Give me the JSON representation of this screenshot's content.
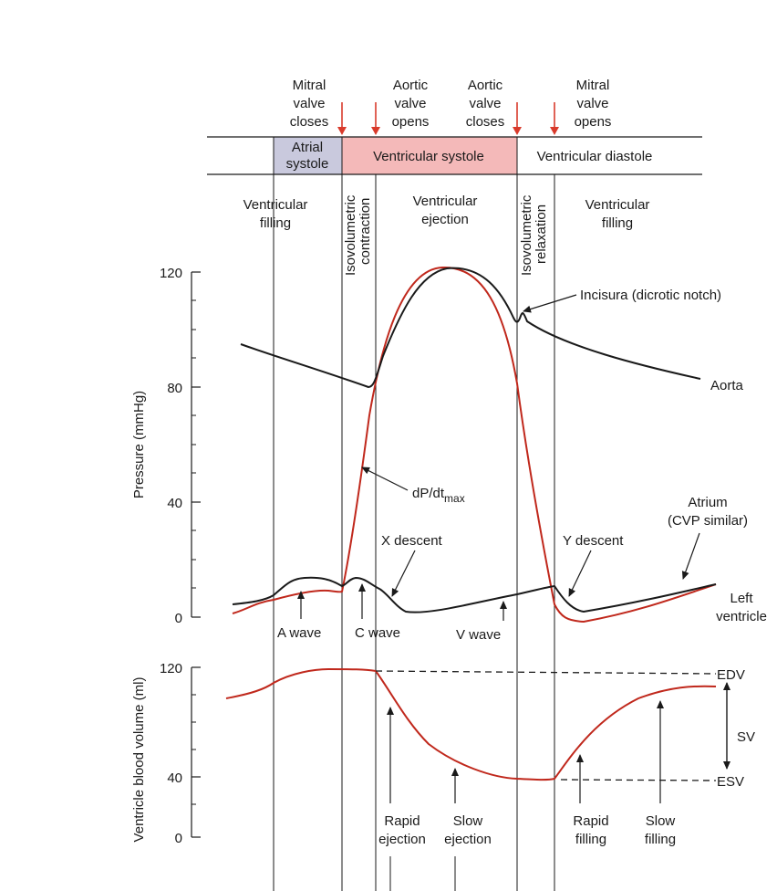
{
  "valve_events": [
    {
      "lines": [
        "Mitral",
        "valve",
        "closes"
      ]
    },
    {
      "lines": [
        "Aortic",
        "valve",
        "opens"
      ]
    },
    {
      "lines": [
        "Aortic",
        "valve",
        "closes"
      ]
    },
    {
      "lines": [
        "Mitral",
        "valve",
        "opens"
      ]
    }
  ],
  "phase_bar": {
    "atrial_systole": [
      "Atrial",
      "systole"
    ],
    "ventricular_systole": "Ventricular systole",
    "ventricular_diastole": "Ventricular diastole"
  },
  "sub_phases": {
    "filling_left": [
      "Ventricular",
      "filling"
    ],
    "isovolumetric_contraction": [
      "Isovolumetric",
      "contraction"
    ],
    "ejection": [
      "Ventricular",
      "ejection"
    ],
    "isovolumetric_relaxation": [
      "Isovolumetric",
      "relaxation"
    ],
    "filling_right": [
      "Ventricular",
      "filling"
    ]
  },
  "pressure_axis": {
    "title": "Pressure (mmHg)",
    "ticks": [
      "120",
      "80",
      "40",
      "0"
    ]
  },
  "volume_axis": {
    "title": "Ventricle blood volume (ml)",
    "ticks": [
      "120",
      "40",
      "0"
    ]
  },
  "labels": {
    "incisura": "Incisura (dicrotic notch)",
    "aorta": "Aorta",
    "dpdt_prefix": "dP/dt",
    "dpdt_sub": "max",
    "x_descent": "X descent",
    "y_descent": "Y descent",
    "atrium": [
      "Atrium",
      "(CVP similar)"
    ],
    "left_ventricle": [
      "Left",
      "ventricle"
    ],
    "a_wave": "A wave",
    "c_wave": "C wave",
    "v_wave": "V wave",
    "edv": "EDV",
    "esv": "ESV",
    "sv": "SV",
    "rapid_ejection": [
      "Rapid",
      "ejection"
    ],
    "slow_ejection": [
      "Slow",
      "ejection"
    ],
    "rapid_filling": [
      "Rapid",
      "filling"
    ],
    "slow_filling": [
      "Slow",
      "filling"
    ]
  },
  "colors": {
    "arrow_red": "#d93a2b",
    "ventricle_red": "#c0281c",
    "atrial_fill": "#c9c9dd",
    "systole_fill": "#f4b9b9",
    "ink": "#1a1a1a"
  }
}
